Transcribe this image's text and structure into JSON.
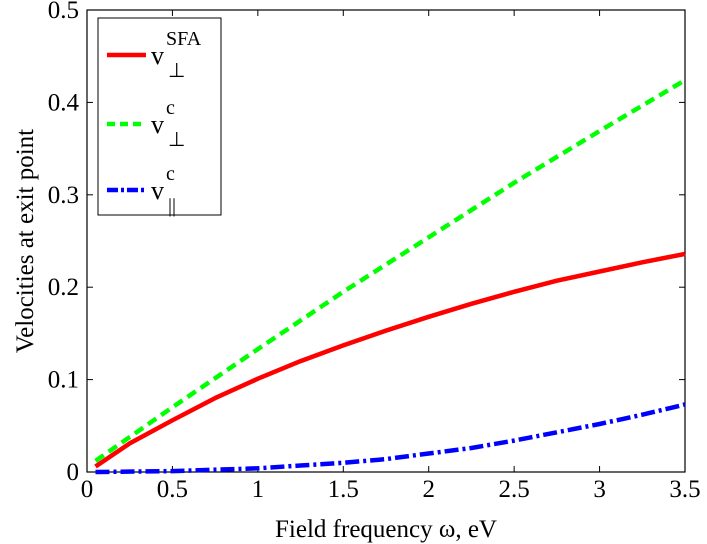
{
  "chart_data": {
    "type": "line",
    "title": "",
    "xlabel": "Field frequency ω, eV",
    "ylabel": "Velocities at exit point",
    "xlim": [
      0,
      3.5
    ],
    "ylim": [
      0,
      0.5
    ],
    "xticks": [
      "0",
      "0.5",
      "1",
      "1.5",
      "2",
      "2.5",
      "3",
      "3.5"
    ],
    "yticks": [
      "0",
      "0.1",
      "0.2",
      "0.3",
      "0.4",
      "0.5"
    ],
    "grid": false,
    "legend_position": "top-left",
    "series": [
      {
        "legend": {
          "base": "v",
          "sup": "SFA",
          "sub": "⊥"
        },
        "color": "#ff0000",
        "style": "solid",
        "x": [
          0.05,
          0.25,
          0.5,
          0.75,
          1.0,
          1.25,
          1.5,
          1.75,
          2.0,
          2.25,
          2.5,
          2.75,
          3.0,
          3.25,
          3.5
        ],
        "y": [
          0.006,
          0.031,
          0.056,
          0.08,
          0.101,
          0.12,
          0.137,
          0.153,
          0.168,
          0.182,
          0.195,
          0.207,
          0.217,
          0.227,
          0.236
        ]
      },
      {
        "legend": {
          "base": "v",
          "sup": "c",
          "sub": "⊥"
        },
        "color": "#00ff00",
        "style": "dashed",
        "x": [
          0.05,
          0.5,
          1.0,
          1.5,
          2.0,
          2.5,
          3.0,
          3.5
        ],
        "y": [
          0.012,
          0.07,
          0.133,
          0.195,
          0.254,
          0.313,
          0.369,
          0.424
        ]
      },
      {
        "legend": {
          "base": "v",
          "sup": "c",
          "sub": "||"
        },
        "color": "#0000ff",
        "style": "dashdot",
        "x": [
          0.05,
          0.5,
          1.0,
          1.25,
          1.5,
          1.75,
          2.0,
          2.25,
          2.5,
          2.75,
          3.0,
          3.25,
          3.5
        ],
        "y": [
          0.0,
          0.001,
          0.004,
          0.007,
          0.01,
          0.014,
          0.02,
          0.026,
          0.034,
          0.043,
          0.052,
          0.062,
          0.073
        ]
      }
    ]
  }
}
